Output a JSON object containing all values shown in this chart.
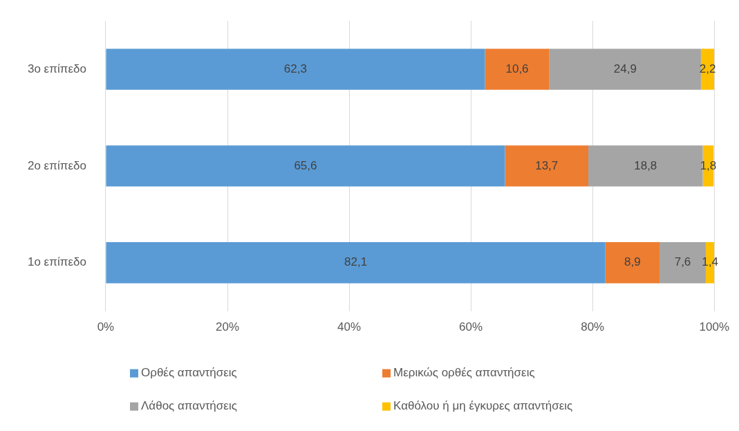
{
  "chart_data": {
    "type": "bar",
    "orientation": "horizontal",
    "stacked": true,
    "categories": [
      "3ο επίπεδο",
      "2ο επίπεδο",
      "1ο επίπεδο"
    ],
    "series": [
      {
        "name": "Ορθές απαντήσεις",
        "color": "#5b9bd5",
        "values": [
          62.3,
          65.6,
          82.1
        ],
        "value_labels": [
          "62,3",
          "65,6",
          "82,1"
        ]
      },
      {
        "name": "Μερικώς ορθές απαντήσεις",
        "color": "#ed7d31",
        "values": [
          10.6,
          13.7,
          8.9
        ],
        "value_labels": [
          "10,6",
          "13,7",
          "8,9"
        ]
      },
      {
        "name": "Λάθος απαντήσεις",
        "color": "#a5a5a5",
        "values": [
          24.9,
          18.8,
          7.6
        ],
        "value_labels": [
          "24,9",
          "18,8",
          "7,6"
        ]
      },
      {
        "name": "Καθόλου ή μη έγκυρες απαντήσεις",
        "color": "#ffc000",
        "values": [
          2.2,
          1.8,
          1.4
        ],
        "value_labels": [
          "2,2",
          "1,8",
          "1,4"
        ]
      }
    ],
    "xlim": [
      0,
      100
    ],
    "xticks": [
      {
        "value": 0,
        "label": "0%"
      },
      {
        "value": 20,
        "label": "20%"
      },
      {
        "value": 40,
        "label": "40%"
      },
      {
        "value": 60,
        "label": "60%"
      },
      {
        "value": 80,
        "label": "80%"
      },
      {
        "value": 100,
        "label": "100%"
      }
    ],
    "grid": "x",
    "legend": "bottom"
  }
}
